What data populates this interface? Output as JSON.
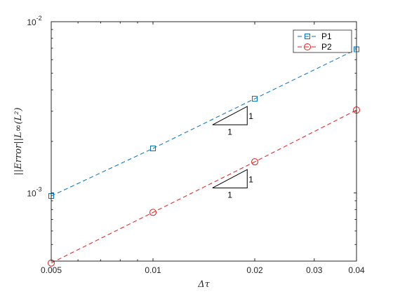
{
  "chart_data": {
    "type": "line",
    "xscale": "log",
    "yscale": "log",
    "xlim": [
      0.005,
      0.04
    ],
    "ylim": [
      0.0004,
      0.01
    ],
    "xticks": [
      0.005,
      0.01,
      0.02,
      0.03,
      0.04
    ],
    "xtick_labels": [
      "0.005",
      "0.01",
      "0.02",
      "0.03",
      "0.04"
    ],
    "yticks": [
      0.001,
      0.01
    ],
    "ytick_labels": [
      {
        "base": "10",
        "exp": "-3"
      },
      {
        "base": "10",
        "exp": "-2"
      }
    ],
    "xlabel": "Δτ",
    "ylabel": "||Error||L∞(L²)",
    "grid": false,
    "legend_position": "top-right",
    "series": [
      {
        "name": "P1",
        "color": "#0072BD",
        "marker": "square",
        "line": "dashed",
        "x": [
          0.005,
          0.01,
          0.02,
          0.04
        ],
        "y": [
          0.00096,
          0.00182,
          0.00355,
          0.0069
        ]
      },
      {
        "name": "P2",
        "color": "#E41A1C",
        "marker": "circle",
        "line": "dashed",
        "x": [
          0.005,
          0.01,
          0.02,
          0.04
        ],
        "y": [
          0.00039,
          0.00077,
          0.00152,
          0.00305
        ]
      }
    ],
    "annotations": [
      {
        "type": "slope-triangle",
        "run_label": "1",
        "rise_label": "1",
        "x": [
          0.015,
          0.019
        ],
        "y": [
          0.0025,
          0.0032
        ]
      },
      {
        "type": "slope-triangle",
        "run_label": "1",
        "rise_label": "1",
        "x": [
          0.015,
          0.019
        ],
        "y": [
          0.00107,
          0.00137
        ]
      }
    ]
  }
}
